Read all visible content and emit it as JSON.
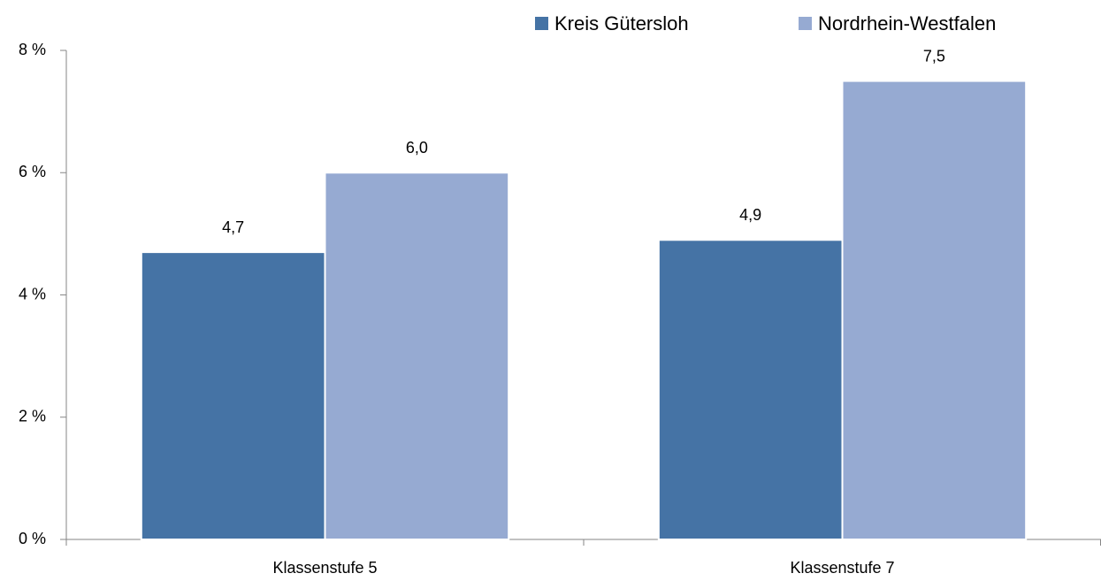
{
  "chart_data": {
    "type": "bar",
    "categories": [
      "Klassenstufe 5",
      "Klassenstufe 7"
    ],
    "series": [
      {
        "name": "Kreis Gütersloh",
        "color": "#4573a5",
        "values": [
          4.7,
          4.9
        ],
        "value_labels": [
          "4,7",
          "4,9"
        ]
      },
      {
        "name": "Nordrhein-Westfalen",
        "color": "#96aad2",
        "values": [
          6.0,
          7.5
        ],
        "value_labels": [
          "6,0",
          "7,5"
        ]
      }
    ],
    "ylim": [
      0,
      8
    ],
    "yticks": [
      {
        "value": 0,
        "label": "0 %"
      },
      {
        "value": 2,
        "label": "2 %"
      },
      {
        "value": 4,
        "label": "4 %"
      },
      {
        "value": 6,
        "label": "6 %"
      },
      {
        "value": 8,
        "label": "8 %"
      }
    ],
    "legend": "top-right"
  }
}
